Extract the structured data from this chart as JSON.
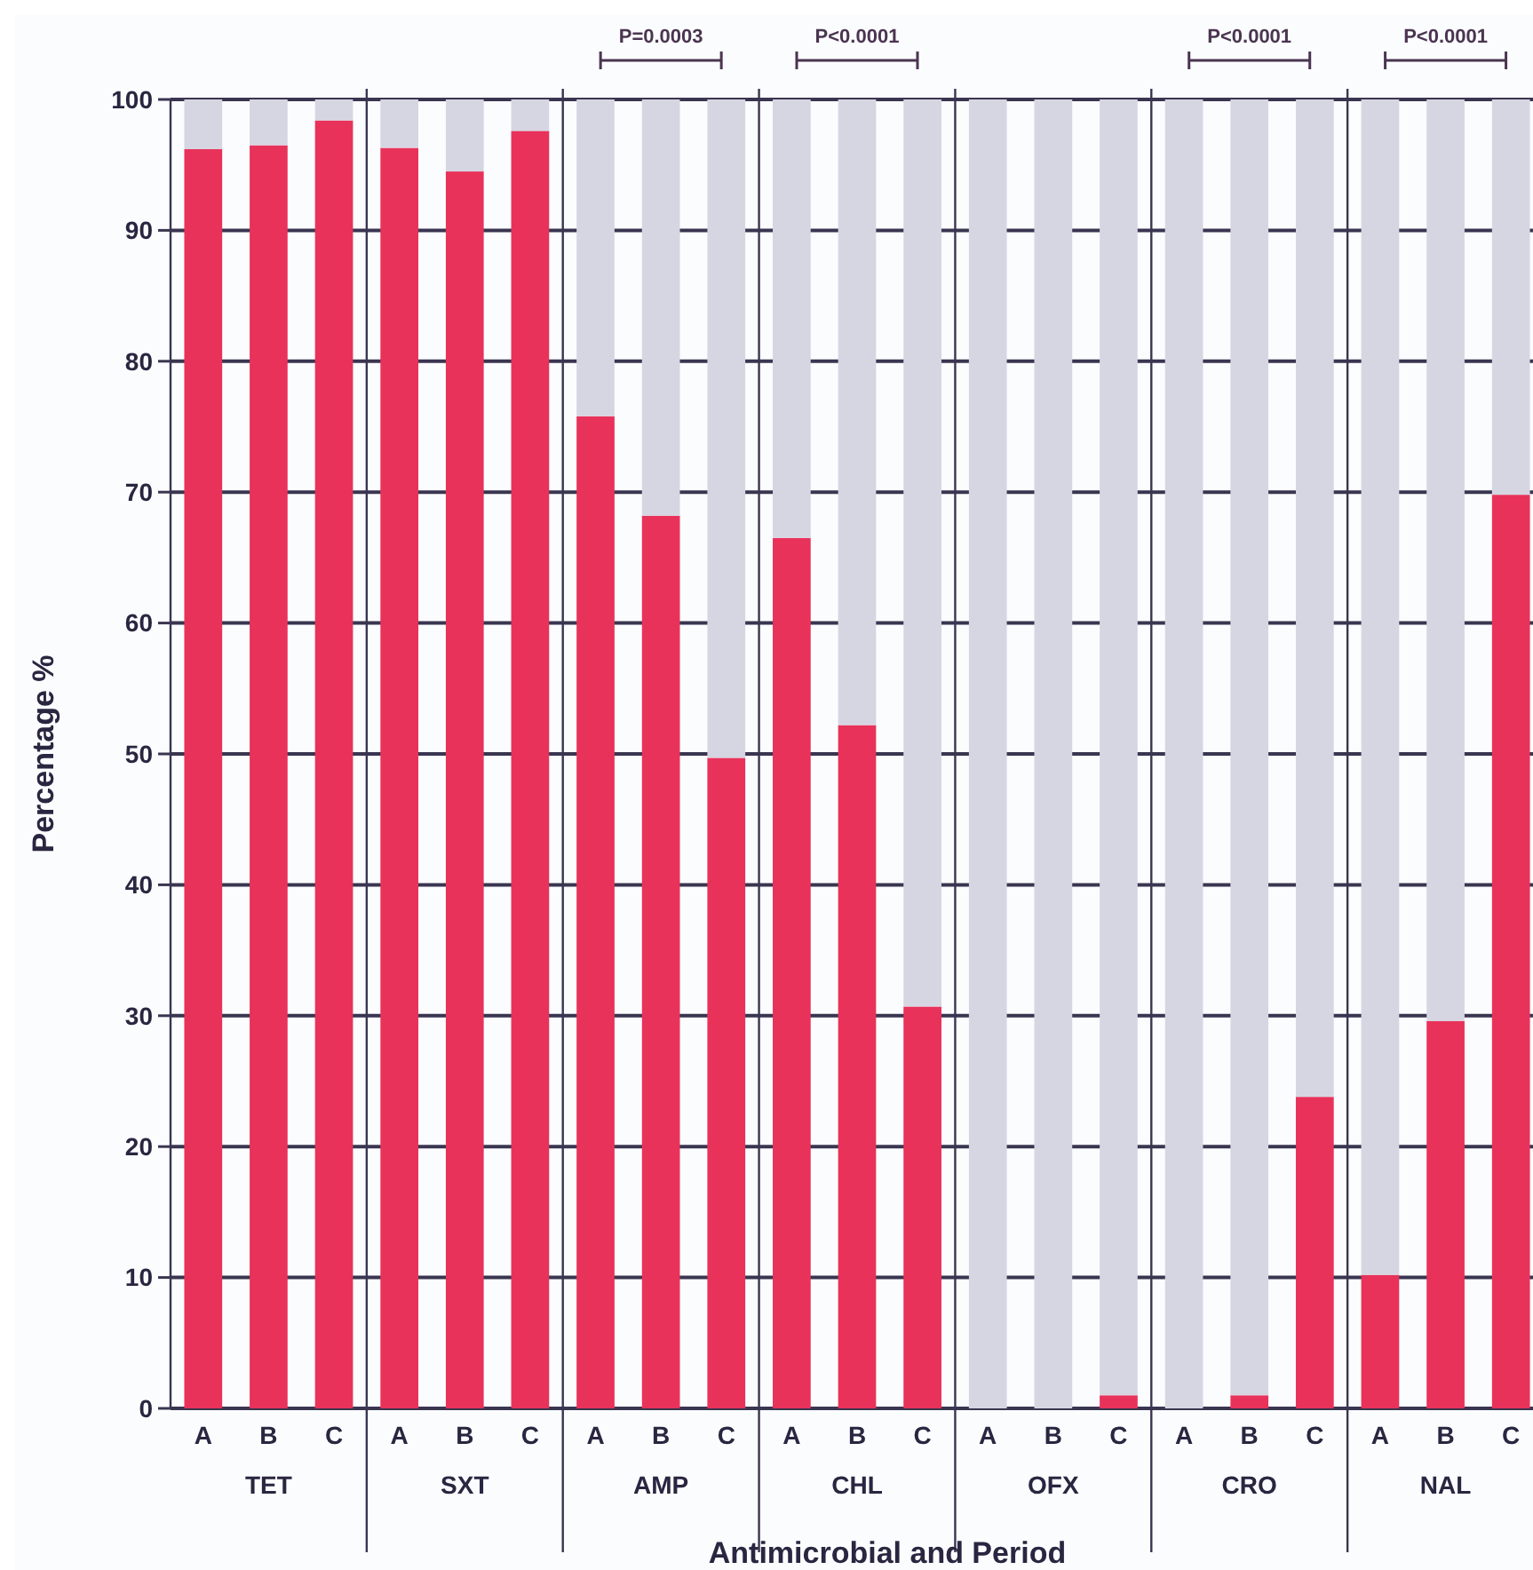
{
  "chart_data": {
    "type": "bar",
    "stacked": true,
    "xlabel": "Antimicrobial and Period",
    "ylabel": "Percentage %",
    "categories": [
      "A",
      "B",
      "C",
      "A",
      "B",
      "C",
      "A",
      "B",
      "C",
      "A",
      "B",
      "C",
      "A",
      "B",
      "C",
      "A",
      "B",
      "C",
      "A",
      "B",
      "C"
    ],
    "series": [
      {
        "color": "#e8325a",
        "values": [
          96.2,
          96.5,
          98.4,
          96.3,
          94.5,
          97.6,
          75.8,
          68.2,
          49.7,
          66.5,
          52.2,
          30.7,
          0,
          0,
          1,
          0,
          1,
          23.8,
          10.2,
          29.6,
          69.8
        ]
      },
      {
        "color": "#d6d6e2",
        "values": [
          3.8,
          3.5,
          1.6,
          3.7,
          5.5,
          2.4,
          24.2,
          31.8,
          50.3,
          33.5,
          47.8,
          69.3,
          100,
          100,
          99,
          100,
          99,
          76.2,
          89.8,
          70.4,
          30.2
        ]
      }
    ],
    "ylim": [
      0,
      100
    ],
    "yticks": [
      0,
      10,
      20,
      30,
      40,
      50,
      60,
      70,
      80,
      90,
      100
    ],
    "grid": "y",
    "annotations": [
      "TET",
      "SXT",
      "AMP",
      "CHL",
      "OFX",
      "CRO",
      "NAL",
      "P=0.0003",
      "P<0.0001",
      "P<0.0001",
      "P<0.0001"
    ]
  }
}
